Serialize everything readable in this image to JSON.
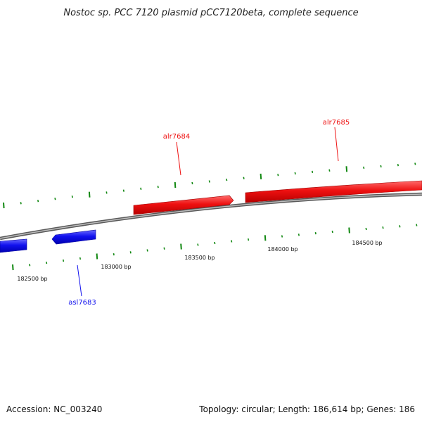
{
  "title": "Nostoc sp. PCC 7120 plasmid pCC7120beta, complete sequence",
  "footer": {
    "accession": "Accession: NC_003240",
    "summary": "Topology: circular; Length: 186,614 bp; Genes: 186"
  },
  "colors": {
    "forward_gene": "#ee1111",
    "reverse_gene": "#1111ee",
    "backbone": "#808080",
    "ticks": "#118811"
  },
  "tick_labels": [
    "182500 bp",
    "183000 bp",
    "183500 bp",
    "184000 bp",
    "184500 bp"
  ],
  "genes": [
    {
      "name": "asl7683",
      "strand": "reverse"
    },
    {
      "name": "alr7684",
      "strand": "forward"
    },
    {
      "name": "alr7685",
      "strand": "forward"
    }
  ]
}
